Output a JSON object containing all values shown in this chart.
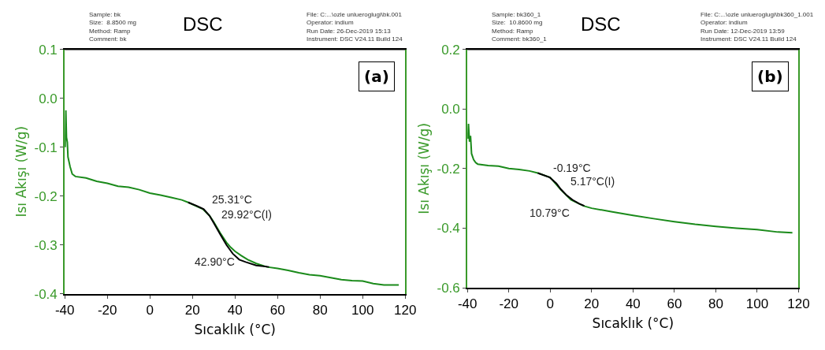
{
  "chart_data": [
    {
      "type": "line",
      "title": "DSC",
      "xlabel": "Sıcaklık (°C)",
      "ylabel": "Isı Akışı (W/g)",
      "xlim": [
        -40,
        120
      ],
      "xticks": [
        -40,
        -20,
        0,
        20,
        40,
        60,
        80,
        100,
        120
      ],
      "ylim": [
        -0.4,
        0.1
      ],
      "yticks": [
        {
          "value": -0.4,
          "label": "-0.4"
        },
        {
          "value": -0.3,
          "label": "-0.3"
        },
        {
          "value": -0.2,
          "label": "-0.2"
        },
        {
          "value": -0.1,
          "label": "-0.1"
        },
        {
          "value": 0,
          "label": "0.0"
        },
        0.1
      ],
      "marker": "none",
      "line_style": "solid",
      "series": [
        {
          "color": "#1a8a1a",
          "x": [
            -39.8,
            -39.5,
            -39.2,
            -38.8,
            -38.5,
            -37.5,
            -36.5,
            -35,
            -30,
            -25,
            -20,
            -15,
            -10,
            -5,
            0,
            5,
            10,
            15,
            18,
            20,
            25,
            28,
            30,
            33,
            36,
            38,
            40,
            43,
            46,
            50,
            55,
            60,
            65,
            70,
            75,
            80,
            85,
            90,
            95,
            100,
            105,
            110,
            117
          ],
          "values": [
            -0.1,
            -0.025,
            -0.08,
            -0.09,
            -0.12,
            -0.14,
            -0.155,
            -0.16,
            -0.163,
            -0.17,
            -0.174,
            -0.18,
            -0.182,
            -0.187,
            -0.194,
            -0.198,
            -0.203,
            -0.208,
            -0.213,
            -0.217,
            -0.227,
            -0.24,
            -0.253,
            -0.275,
            -0.295,
            -0.305,
            -0.313,
            -0.322,
            -0.33,
            -0.338,
            -0.345,
            -0.348,
            -0.352,
            -0.357,
            -0.361,
            -0.363,
            -0.367,
            -0.371,
            -0.373,
            -0.374,
            -0.379,
            -0.382,
            -0.382
          ]
        },
        {
          "color": "#000000",
          "x": [
            18,
            22,
            25.3,
            28,
            30,
            33,
            36,
            39,
            42,
            45,
            50,
            56
          ],
          "values": [
            -0.213,
            -0.22,
            -0.227,
            -0.24,
            -0.255,
            -0.278,
            -0.3,
            -0.318,
            -0.33,
            -0.335,
            -0.342,
            -0.345
          ]
        }
      ],
      "annotations": [
        "Sample: bk\nSize:  8.8500 mg\nMethod: Ramp\nComment: bk",
        "File: C:...\\ozle unlueroglugi\\bk.001\nOperator: indium\nRun Date: 26-Dec-2019 15:13\nInstrument: DSC V24.11 Build 124",
        "(a)",
        {
          "text": "25.31°C",
          "x": 25.31,
          "y": -0.227
        },
        {
          "text": "29.92°C(I)",
          "x": 29.92,
          "y": -0.253
        },
        {
          "text": "42.90°C",
          "x": 42.9,
          "y": -0.325
        }
      ]
    },
    {
      "type": "line",
      "title": "DSC",
      "xlabel": "Sıcaklık (°C)",
      "ylabel": "Isı Akışı (W/g)",
      "xlim": [
        -40,
        120
      ],
      "xticks": [
        -40,
        -20,
        0,
        20,
        40,
        60,
        80,
        100,
        120
      ],
      "ylim": [
        -0.6,
        0.2
      ],
      "yticks": [
        -0.6,
        -0.4,
        -0.2,
        {
          "value": 0,
          "label": "0.0"
        },
        0.2
      ],
      "marker": "none",
      "line_style": "solid",
      "series": [
        {
          "color": "#1a8a1a",
          "x": [
            -39.8,
            -39.5,
            -39,
            -38.5,
            -38,
            -37,
            -36,
            -35,
            -30,
            -25,
            -20,
            -15,
            -10,
            -6,
            0,
            5,
            10,
            16,
            20,
            30,
            40,
            50,
            60,
            70,
            80,
            90,
            100,
            110,
            117
          ],
          "values": [
            -0.1,
            -0.05,
            -0.11,
            -0.09,
            -0.15,
            -0.17,
            -0.18,
            -0.185,
            -0.19,
            -0.192,
            -0.2,
            -0.203,
            -0.208,
            -0.215,
            -0.23,
            -0.27,
            -0.305,
            -0.325,
            -0.333,
            -0.345,
            -0.357,
            -0.368,
            -0.378,
            -0.387,
            -0.394,
            -0.4,
            -0.405,
            -0.413,
            -0.415
          ]
        },
        {
          "color": "#000000",
          "x": [
            -6,
            -0.2,
            3,
            5.2,
            8,
            10.8,
            14,
            16.5
          ],
          "values": [
            -0.215,
            -0.23,
            -0.25,
            -0.27,
            -0.29,
            -0.305,
            -0.318,
            -0.325
          ]
        }
      ],
      "annotations": [
        "Sample: bk360_1\nSize:  10.8600 mg\nMethod: Ramp\nComment: bk360_1",
        "File: C:...\\ozle unlueroglugi\\bk360_1.001\nOperator: indium\nRun Date: 12-Dec-2019 13:59\nInstrument: DSC V24.11 Build 124",
        "(b)",
        {
          "text": "-0.19°C",
          "x": -0.19,
          "y": -0.23
        },
        {
          "text": "5.17°C(I)",
          "x": 5.17,
          "y": -0.27
        },
        {
          "text": "10.79°C",
          "x": 10.79,
          "y": -0.305
        }
      ]
    }
  ]
}
